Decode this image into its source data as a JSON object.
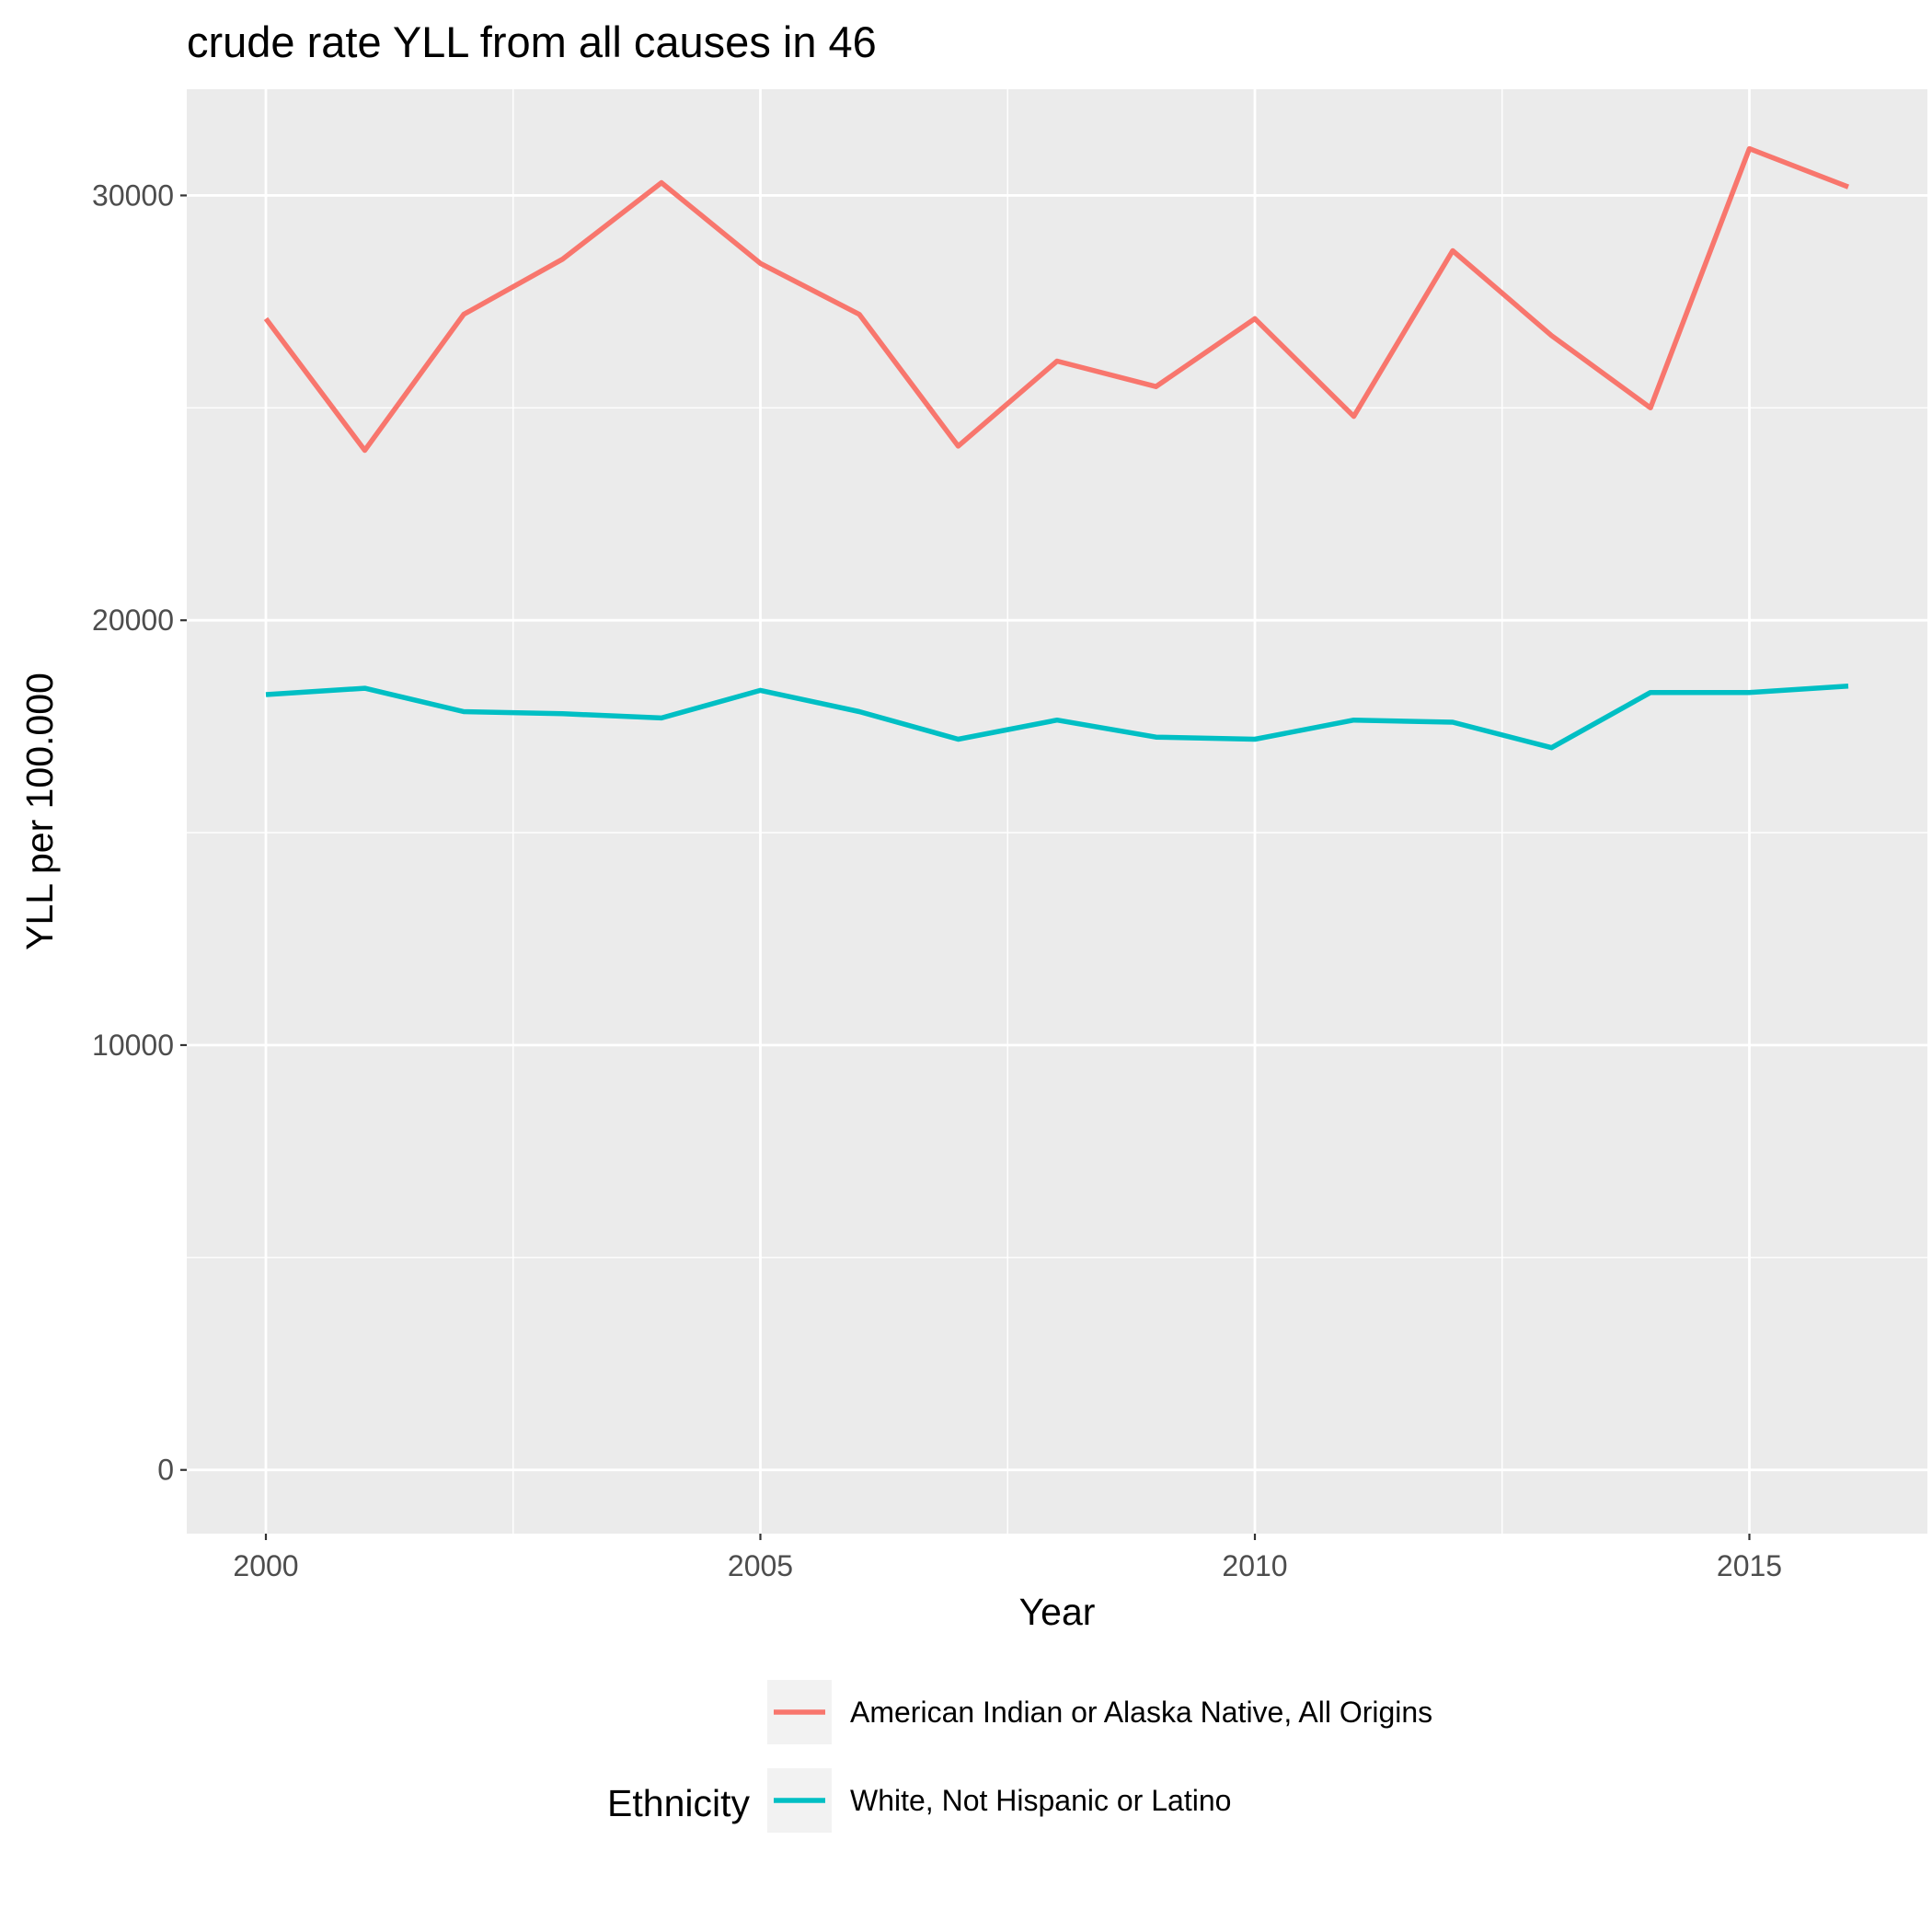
{
  "chart_data": {
    "type": "line",
    "title": "crude rate YLL from all causes in 46",
    "xlabel": "Year",
    "ylabel": "YLL per 100.000",
    "xlim": [
      1999.2,
      2016.8
    ],
    "ylim": [
      -1500,
      32500
    ],
    "x_ticks": [
      2000,
      2005,
      2010,
      2015
    ],
    "x_tick_labels": [
      "2000",
      "2005",
      "2010",
      "2015"
    ],
    "x_minor_ticks": [
      2002.5,
      2007.5,
      2012.5
    ],
    "y_ticks": [
      0,
      10000,
      20000,
      30000
    ],
    "y_tick_labels": [
      "0",
      "10000",
      "20000",
      "30000"
    ],
    "y_minor_ticks": [
      5000,
      15000,
      25000
    ],
    "grid": true,
    "legend": {
      "title": "Ethnicity",
      "position": "bottom"
    },
    "x": [
      2000,
      2001,
      2002,
      2003,
      2004,
      2005,
      2006,
      2007,
      2008,
      2009,
      2010,
      2011,
      2012,
      2013,
      2014,
      2015,
      2016
    ],
    "series": [
      {
        "name": "American Indian or Alaska Native, All Origins",
        "color": "#F8766D",
        "values": [
          27100,
          24000,
          27200,
          28500,
          30300,
          28400,
          27200,
          24100,
          26100,
          25500,
          27100,
          24800,
          28700,
          26700,
          25000,
          31100,
          30200
        ]
      },
      {
        "name": "White, Not Hispanic or Latino",
        "color": "#00BFC4",
        "values": [
          18250,
          18400,
          17850,
          17800,
          17700,
          18350,
          17850,
          17200,
          17650,
          17250,
          17200,
          17650,
          17600,
          17000,
          18300,
          18300,
          18450
        ]
      }
    ]
  }
}
